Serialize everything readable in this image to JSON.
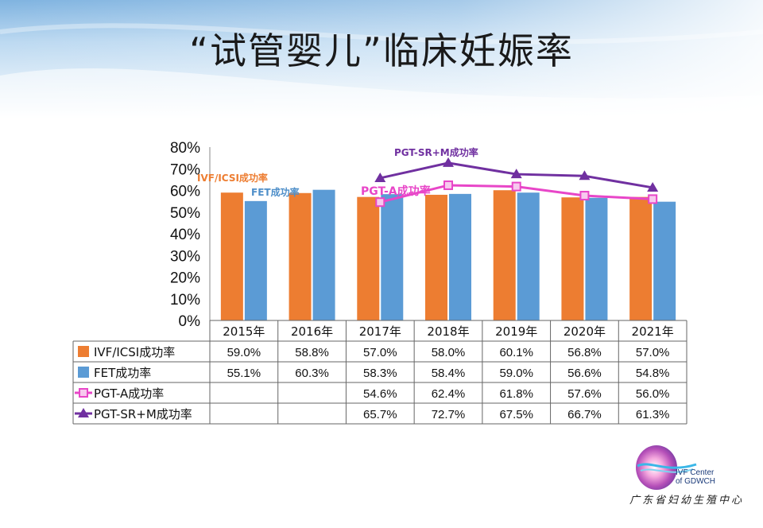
{
  "slide": {
    "title": "“试管婴儿”临床妊娠率"
  },
  "logo": {
    "name_en_line1": "IVF Center",
    "name_en_line2": "of GDWCH",
    "name_cn": "广东省妇幼生殖中心"
  },
  "chart_data": {
    "type": "bar",
    "categories": [
      "2015年",
      "2016年",
      "2017年",
      "2018年",
      "2019年",
      "2020年",
      "2021年"
    ],
    "ylim": [
      0,
      80
    ],
    "yticks": [
      "0%",
      "10%",
      "20%",
      "30%",
      "40%",
      "50%",
      "60%",
      "70%",
      "80%"
    ],
    "grid": false,
    "legend": "data-table",
    "series": [
      {
        "name": "IVF/ICSI成功率",
        "kind": "bar",
        "color": "#ED7D31",
        "values": [
          59.0,
          58.8,
          57.0,
          58.0,
          60.1,
          56.8,
          57.0
        ],
        "labels": [
          "59.0%",
          "58.8%",
          "57.0%",
          "58.0%",
          "60.1%",
          "56.8%",
          "57.0%"
        ]
      },
      {
        "name": "FET成功率",
        "kind": "bar",
        "color": "#5B9BD5",
        "values": [
          55.1,
          60.3,
          58.3,
          58.4,
          59.0,
          56.6,
          54.8
        ],
        "labels": [
          "55.1%",
          "60.3%",
          "58.3%",
          "58.4%",
          "59.0%",
          "56.6%",
          "54.8%"
        ]
      },
      {
        "name": "PGT-A成功率",
        "kind": "line",
        "marker": "square",
        "color": "#E846C8",
        "values": [
          null,
          null,
          54.6,
          62.4,
          61.8,
          57.6,
          56.0
        ],
        "labels": [
          "",
          "",
          "54.6%",
          "62.4%",
          "61.8%",
          "57.6%",
          "56.0%"
        ]
      },
      {
        "name": "PGT-SR+M成功率",
        "kind": "line",
        "marker": "triangle",
        "color": "#7030A0",
        "values": [
          null,
          null,
          65.7,
          72.7,
          67.5,
          66.7,
          61.3
        ],
        "labels": [
          "",
          "",
          "65.7%",
          "72.7%",
          "67.5%",
          "66.7%",
          "61.3%"
        ]
      }
    ],
    "annotations": [
      {
        "text": "IVF/ICSI成功率",
        "color": "#ED7D31"
      },
      {
        "text": "FET成功率",
        "color": "#4F8FC9"
      },
      {
        "text": "PGT-A成功率",
        "color": "#E846C8"
      },
      {
        "text": "PGT-SR+M成功率",
        "color": "#7030A0"
      }
    ]
  }
}
